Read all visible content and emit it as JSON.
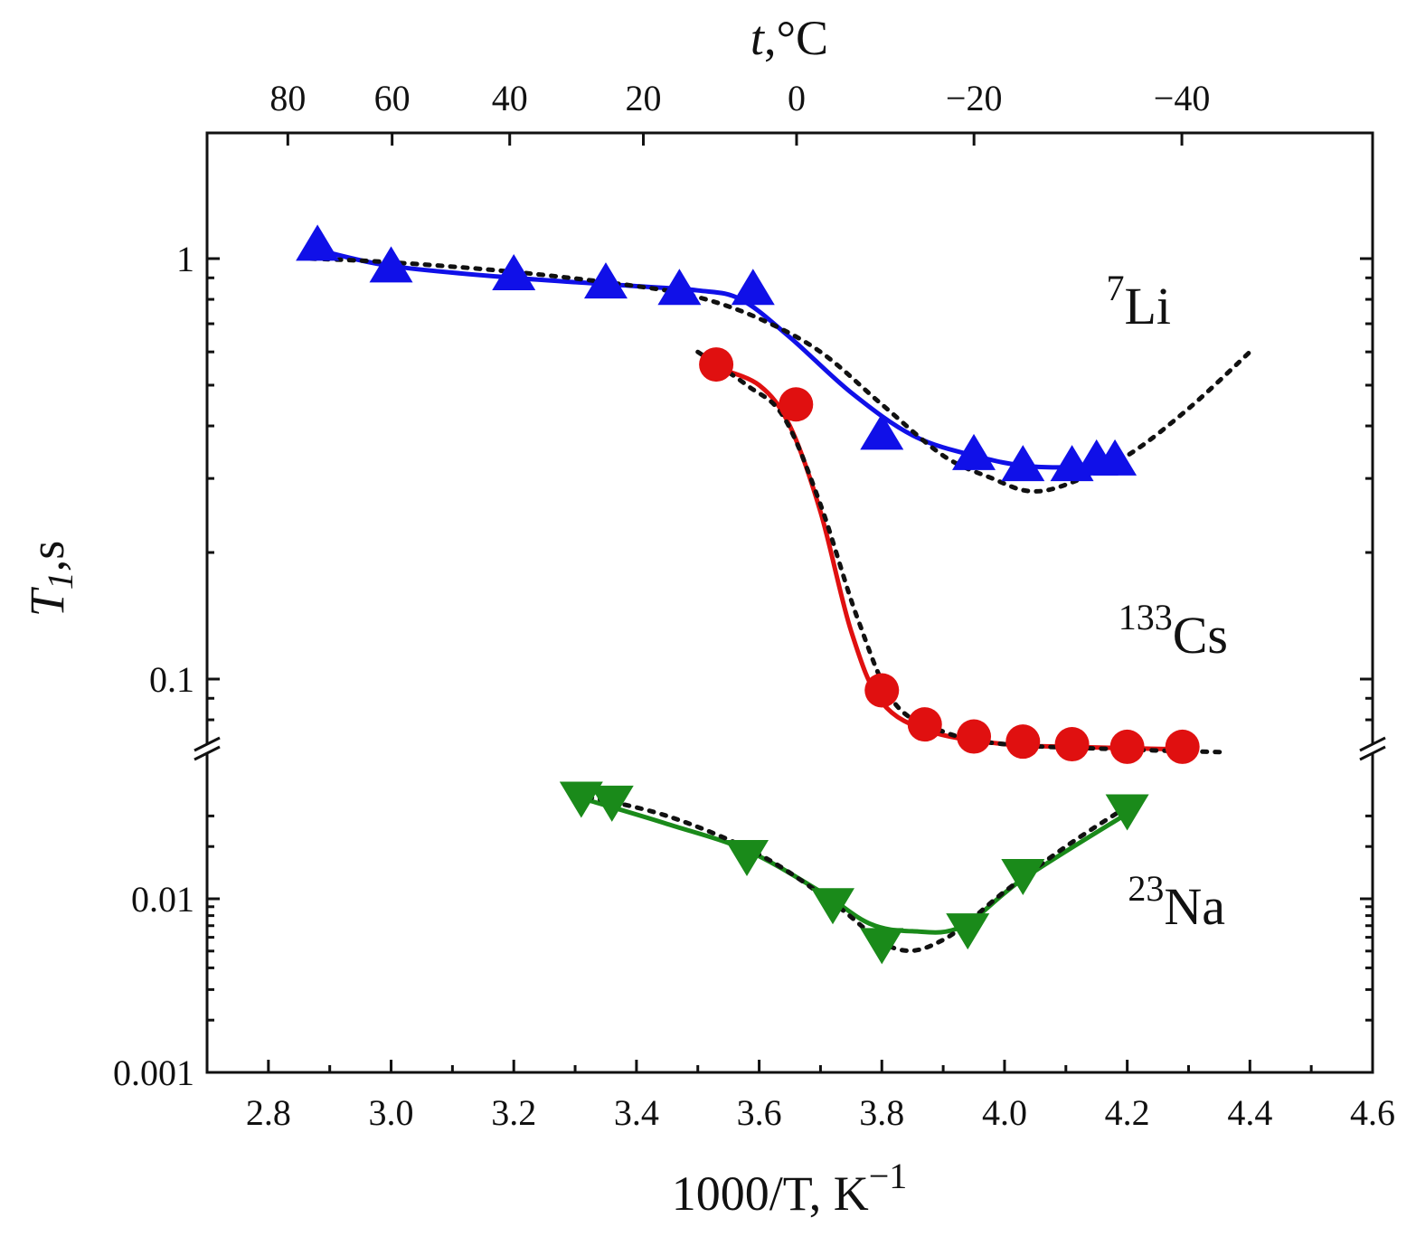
{
  "chart_data": {
    "type": "scatter",
    "xlabel": "1000/T, K",
    "xlabel_superscript": "−1",
    "x_ticks": [
      "2.8",
      "3.0",
      "3.2",
      "3.4",
      "3.6",
      "3.8",
      "4.0",
      "4.2",
      "4.4",
      "4.6"
    ],
    "xlim": [
      2.7,
      4.6
    ],
    "ylabel_main": "T",
    "ylabel_sub": "1",
    "ylabel_unit": ",s",
    "y_scale": "log",
    "y_axis_break": true,
    "y_ticks": [
      "1",
      "0.1",
      "0.01",
      "0.001"
    ],
    "top_axis": {
      "label_main": "t",
      "label_unit": ",°C",
      "ticks": [
        {
          "label": "80",
          "value": 80
        },
        {
          "label": "60",
          "value": 60
        },
        {
          "label": "40",
          "value": 40
        },
        {
          "label": "20",
          "value": 20
        },
        {
          "label": "0",
          "value": 0
        },
        {
          "label": "−20",
          "value": -20
        },
        {
          "label": "−40",
          "value": -40
        }
      ]
    },
    "series": [
      {
        "name": "Li",
        "name_superscript": "7",
        "color": "#1010e8",
        "marker": "triangle-up",
        "segment": "upper",
        "points": [
          [
            2.88,
            1.07
          ],
          [
            3.0,
            0.95
          ],
          [
            3.2,
            0.91
          ],
          [
            3.35,
            0.87
          ],
          [
            3.47,
            0.84
          ],
          [
            3.59,
            0.84
          ],
          [
            3.8,
            0.38
          ],
          [
            3.95,
            0.34
          ],
          [
            4.03,
            0.32
          ],
          [
            4.11,
            0.32
          ],
          [
            4.15,
            0.33
          ],
          [
            4.18,
            0.33
          ]
        ],
        "fit": [
          [
            2.88,
            1.05
          ],
          [
            3.0,
            0.96
          ],
          [
            3.2,
            0.9
          ],
          [
            3.4,
            0.86
          ],
          [
            3.5,
            0.84
          ],
          [
            3.57,
            0.8
          ],
          [
            3.65,
            0.65
          ],
          [
            3.75,
            0.48
          ],
          [
            3.85,
            0.38
          ],
          [
            3.95,
            0.34
          ],
          [
            4.05,
            0.32
          ],
          [
            4.2,
            0.32
          ]
        ],
        "model": [
          [
            2.87,
            1.0
          ],
          [
            3.0,
            0.98
          ],
          [
            3.2,
            0.93
          ],
          [
            3.4,
            0.86
          ],
          [
            3.5,
            0.81
          ],
          [
            3.6,
            0.72
          ],
          [
            3.7,
            0.6
          ],
          [
            3.8,
            0.45
          ],
          [
            3.9,
            0.34
          ],
          [
            3.98,
            0.3
          ],
          [
            4.04,
            0.28
          ],
          [
            4.1,
            0.29
          ],
          [
            4.2,
            0.34
          ],
          [
            4.3,
            0.44
          ],
          [
            4.4,
            0.6
          ]
        ]
      },
      {
        "name": "Cs",
        "name_superscript": "133",
        "color": "#e01010",
        "marker": "circle",
        "segment": "upper",
        "points": [
          [
            3.53,
            0.56
          ],
          [
            3.66,
            0.45
          ],
          [
            3.8,
            0.094
          ],
          [
            3.87,
            0.078
          ],
          [
            3.95,
            0.073
          ],
          [
            4.03,
            0.071
          ],
          [
            4.11,
            0.07
          ],
          [
            4.2,
            0.069
          ],
          [
            4.29,
            0.069
          ]
        ],
        "fit": [
          [
            3.53,
            0.55
          ],
          [
            3.6,
            0.5
          ],
          [
            3.65,
            0.4
          ],
          [
            3.7,
            0.25
          ],
          [
            3.75,
            0.13
          ],
          [
            3.8,
            0.088
          ],
          [
            3.88,
            0.075
          ],
          [
            4.0,
            0.07
          ],
          [
            4.1,
            0.069
          ],
          [
            4.3,
            0.068
          ]
        ],
        "model": [
          [
            3.5,
            0.6
          ],
          [
            3.58,
            0.5
          ],
          [
            3.64,
            0.42
          ],
          [
            3.7,
            0.26
          ],
          [
            3.76,
            0.14
          ],
          [
            3.82,
            0.088
          ],
          [
            3.9,
            0.075
          ],
          [
            4.0,
            0.07
          ],
          [
            4.2,
            0.068
          ],
          [
            4.36,
            0.067
          ]
        ]
      },
      {
        "name": "Na",
        "name_superscript": "23",
        "color": "#1a8a1a",
        "marker": "triangle-down",
        "segment": "lower",
        "points": [
          [
            3.31,
            0.039
          ],
          [
            3.36,
            0.037
          ],
          [
            3.58,
            0.018
          ],
          [
            3.72,
            0.0095
          ],
          [
            3.8,
            0.0056
          ],
          [
            3.94,
            0.0068
          ],
          [
            4.03,
            0.014
          ],
          [
            4.2,
            0.033
          ]
        ],
        "fit": [
          [
            3.31,
            0.038
          ],
          [
            3.45,
            0.027
          ],
          [
            3.58,
            0.019
          ],
          [
            3.7,
            0.011
          ],
          [
            3.78,
            0.0072
          ],
          [
            3.85,
            0.0065
          ],
          [
            3.93,
            0.0069
          ],
          [
            4.03,
            0.013
          ],
          [
            4.2,
            0.031
          ]
        ],
        "model": [
          [
            3.3,
            0.04
          ],
          [
            3.45,
            0.03
          ],
          [
            3.6,
            0.018
          ],
          [
            3.72,
            0.0095
          ],
          [
            3.82,
            0.0052
          ],
          [
            3.9,
            0.0058
          ],
          [
            4.0,
            0.011
          ],
          [
            4.1,
            0.02
          ],
          [
            4.2,
            0.034
          ]
        ]
      }
    ]
  }
}
